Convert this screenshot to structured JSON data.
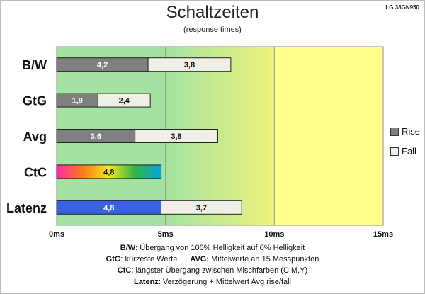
{
  "header": {
    "title": "Schaltzeiten",
    "subtitle": "(response times)",
    "model": "LG 38GN950"
  },
  "chart_data": {
    "type": "bar",
    "orientation": "horizontal",
    "stacked": true,
    "categories": [
      "B/W",
      "GtG",
      "Avg",
      "CtC",
      "Latenz"
    ],
    "unit": "ms",
    "xlim": [
      0,
      15
    ],
    "x_ticks": [
      "0ms",
      "5ms",
      "10ms",
      "15ms"
    ],
    "legend_position": "right",
    "series": [
      {
        "name": "Rise",
        "values": [
          4.2,
          1.9,
          3.6,
          4.8,
          4.8
        ],
        "labels": [
          "4,2",
          "1,9",
          "3,6",
          "4,8",
          "4,8"
        ],
        "color": "#808080"
      },
      {
        "name": "Fall",
        "values": [
          3.8,
          2.4,
          3.8,
          0,
          3.7
        ],
        "labels": [
          "3,8",
          "2,4",
          "3,8",
          "",
          "3,7"
        ],
        "color": "#f0efe6"
      }
    ],
    "special_bar_colors": {
      "CtC": "rainbow-gradient",
      "Latenz": "#3a62e0"
    },
    "background_zones": [
      {
        "from": 0,
        "to": 5,
        "color": "#a3e2a0"
      },
      {
        "from": 5,
        "to": 10,
        "color": "green-to-yellow-gradient"
      },
      {
        "from": 10,
        "to": 15,
        "color": "#ffff8c"
      }
    ]
  },
  "notes": {
    "bw_key": "B/W",
    "bw_text": ":  Übergang von 100% Helligkeit auf 0% Helligkeit",
    "gtg_key": "GtG",
    "gtg_text": ": kürzeste  Werte",
    "avg_key": "AVG:",
    "avg_text": " Mittelwerte  an 15 Messpunkten",
    "ctc_key": "CtC",
    "ctc_text": ": längster Übergang  zwischen Mischfarben  (C,M,Y)",
    "latenz_key": "Latenz",
    "latenz_text": ": Verzögerung  + Mittelwert  Avg rise/fall"
  }
}
